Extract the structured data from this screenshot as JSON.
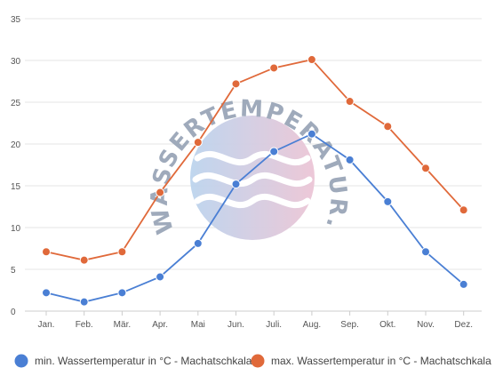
{
  "chart_data": {
    "type": "line",
    "categories": [
      "Jan.",
      "Feb.",
      "Mär.",
      "Apr.",
      "Mai",
      "Jun.",
      "Juli.",
      "Aug.",
      "Sep.",
      "Okt.",
      "Nov.",
      "Dez."
    ],
    "series": [
      {
        "name": "min. Wassertemperatur in °C - Machatschkala",
        "color": "#4a7fd4",
        "values": [
          2.2,
          1.1,
          2.2,
          4.1,
          8.1,
          15.2,
          19.1,
          21.2,
          18.1,
          13.1,
          7.1,
          3.2
        ]
      },
      {
        "name": "max. Wassertemperatur in °C - Machatschkala",
        "color": "#e0693a",
        "values": [
          7.1,
          6.1,
          7.1,
          14.2,
          20.2,
          27.2,
          29.1,
          30.1,
          25.1,
          22.1,
          17.1,
          12.1
        ]
      }
    ],
    "yticks": [
      0,
      5,
      10,
      15,
      20,
      25,
      30,
      35
    ],
    "ylim": [
      0,
      35
    ],
    "grid": true,
    "legend": "bottom"
  },
  "watermark": {
    "text": "WASSERTEMPERATUR.ORG",
    "icon": "waves-logo-icon"
  }
}
